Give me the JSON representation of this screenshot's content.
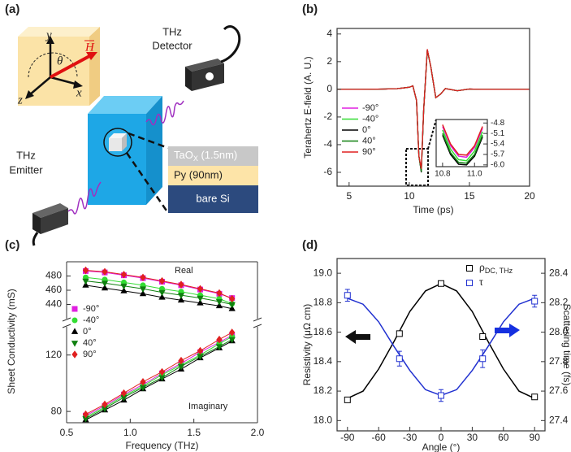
{
  "diagram": {
    "label": "(a)",
    "axes": {
      "y": "y",
      "x": "x",
      "z": "z",
      "angle": "θ",
      "field": "H"
    },
    "detector": [
      "THz",
      "Detector"
    ],
    "emitter": [
      "THz",
      "Emitter"
    ],
    "layers": [
      {
        "label": "TaO",
        "sub": "X",
        "suffix": " (1.5nm)"
      },
      {
        "label": "Py (90nm)"
      },
      {
        "label": "bare Si"
      }
    ]
  },
  "chart_data": [
    {
      "type": "line",
      "label": "(b)",
      "xlabel": "Time (ps)",
      "ylabel": "Terahertz E-field (A. U.)",
      "x": [
        4,
        6,
        8,
        9,
        9.5,
        10,
        10.3,
        10.6,
        10.8,
        11.0,
        11.2,
        11.5,
        11.8,
        12.2,
        12.6,
        13,
        14,
        15,
        16,
        18,
        20
      ],
      "xlim": [
        4,
        20
      ],
      "xticks": [
        5,
        10,
        15,
        20
      ],
      "ylim": [
        -7,
        4.4
      ],
      "yticks": [
        -6,
        -4,
        -2,
        0,
        2,
        4
      ],
      "legend": "left",
      "series": [
        {
          "name": "-90°",
          "color": "#e020e0",
          "values": [
            0,
            0,
            0.02,
            0.05,
            0.1,
            0.15,
            0.25,
            -0.8,
            -4.8,
            -5.8,
            -1.5,
            2.85,
            1.6,
            -0.6,
            -0.35,
            0.05,
            -0.1,
            0.02,
            0,
            0,
            0
          ]
        },
        {
          "name": "-40°",
          "color": "#33dd33",
          "values": [
            0,
            0,
            0.02,
            0.05,
            0.1,
            0.15,
            0.25,
            -0.8,
            -4.8,
            -5.9,
            -1.5,
            2.85,
            1.6,
            -0.6,
            -0.35,
            0.05,
            -0.1,
            0.02,
            0,
            0,
            0
          ]
        },
        {
          "name": "0°",
          "color": "#000000",
          "values": [
            0,
            0,
            0.02,
            0.05,
            0.1,
            0.15,
            0.25,
            -0.8,
            -4.8,
            -6.0,
            -1.5,
            2.85,
            1.6,
            -0.6,
            -0.35,
            0.05,
            -0.1,
            0.02,
            0,
            0,
            0
          ]
        },
        {
          "name": "40°",
          "color": "#108010",
          "values": [
            0,
            0,
            0.02,
            0.05,
            0.1,
            0.15,
            0.25,
            -0.8,
            -4.8,
            -5.95,
            -1.5,
            2.85,
            1.6,
            -0.6,
            -0.35,
            0.05,
            -0.1,
            0.02,
            0,
            0,
            0
          ]
        },
        {
          "name": "90°",
          "color": "#e02020",
          "values": [
            0,
            0,
            0.02,
            0.05,
            0.1,
            0.15,
            0.25,
            -0.8,
            -4.8,
            -5.75,
            -1.5,
            2.9,
            1.6,
            -0.6,
            -0.35,
            0.05,
            -0.1,
            0.02,
            0,
            0,
            0
          ]
        }
      ]
    },
    {
      "type": "line",
      "x": [
        10.8,
        10.85,
        10.9,
        10.95,
        11.0,
        11.05
      ],
      "xlim": [
        10.76,
        11.08
      ],
      "xticks": [
        10.8,
        {
          "value": 11,
          "label": "11.0"
        }
      ],
      "ylim": [
        -6.05,
        -4.7
      ],
      "yticks": [
        -4.8,
        -5.1,
        -5.4,
        -5.7,
        {
          "value": -6,
          "label": "-6.0"
        }
      ],
      "series": [
        {
          "color": "#e020e0",
          "values": [
            -4.9,
            -5.45,
            -5.75,
            -5.78,
            -5.5,
            -4.95
          ]
        },
        {
          "color": "#33dd33",
          "values": [
            -5.0,
            -5.55,
            -5.85,
            -5.88,
            -5.6,
            -5.05
          ]
        },
        {
          "color": "#000000",
          "values": [
            -5.15,
            -5.7,
            -5.98,
            -6.0,
            -5.75,
            -5.2
          ]
        },
        {
          "color": "#108010",
          "values": [
            -5.1,
            -5.65,
            -5.93,
            -5.95,
            -5.7,
            -5.15
          ]
        },
        {
          "color": "#e02020",
          "values": [
            -4.85,
            -5.4,
            -5.7,
            -5.72,
            -5.45,
            -4.9
          ]
        }
      ]
    },
    {
      "type": "scatter",
      "label": "(c)",
      "xlabel": "Frequency (THz)",
      "ylabel": "Sheet Conductivity (mS)",
      "annotations": [
        "Real",
        "Imaginary"
      ],
      "x": [
        0.65,
        0.8,
        0.95,
        1.1,
        1.25,
        1.4,
        1.55,
        1.7,
        1.8
      ],
      "xlim": [
        0.5,
        2
      ],
      "xticks": [
        0.5,
        {
          "value": 1,
          "label": "1.0"
        },
        1.5,
        {
          "value": 2,
          "label": "2.0"
        }
      ],
      "ylim": [
        72,
        140
      ],
      "yticks": [
        80,
        120
      ],
      "ylim_top": [
        420,
        500
      ],
      "yticks_top": [
        440,
        460,
        480
      ],
      "legend": "left",
      "series": [
        {
          "name": "-90°",
          "color": "#e020e0",
          "marker": "square",
          "values": [
            487,
            485,
            481,
            477,
            472,
            467,
            461,
            455,
            449
          ],
          "imaginary": [
            77,
            84,
            92,
            99,
            107,
            114,
            122,
            129,
            134
          ]
        },
        {
          "name": "-40°",
          "color": "#33dd33",
          "marker": "circle",
          "values": [
            478,
            475,
            471,
            467,
            462,
            458,
            453,
            448,
            441
          ],
          "imaginary": [
            76,
            83,
            91,
            98,
            106,
            113,
            120,
            128,
            133
          ]
        },
        {
          "name": "0°",
          "color": "#000000",
          "marker": "triangle",
          "values": [
            467,
            463,
            459,
            455,
            450,
            446,
            442,
            438,
            434
          ],
          "imaginary": [
            74,
            81,
            88,
            96,
            103,
            110,
            118,
            125,
            130
          ]
        },
        {
          "name": "40°",
          "color": "#108010",
          "marker": "triangle-down",
          "values": [
            473,
            470,
            466,
            462,
            457,
            453,
            449,
            444,
            440
          ],
          "imaginary": [
            75,
            82,
            90,
            97,
            104,
            112,
            119,
            126,
            131
          ]
        },
        {
          "name": "90°",
          "color": "#e02020",
          "marker": "diamond",
          "values": [
            488,
            486,
            482,
            478,
            473,
            468,
            462,
            456,
            448
          ],
          "imaginary": [
            78,
            85,
            93,
            101,
            108,
            116,
            123,
            131,
            136
          ]
        }
      ]
    },
    {
      "type": "dual_scatter",
      "label": "(d)",
      "xlabel": "Angle (°)",
      "ylabel": "Resistivity (μΩ cm)",
      "y2label": "Scattering time (fs)",
      "x": [
        -90,
        -40,
        0,
        40,
        90
      ],
      "xlim": [
        -100,
        100
      ],
      "xticks": [
        -90,
        -60,
        -30,
        0,
        30,
        60,
        90
      ],
      "ylim": [
        17.93,
        19.1
      ],
      "yticks": [
        {
          "value": 18,
          "label": "18.0"
        },
        18.2,
        18.4,
        18.6,
        18.8,
        {
          "value": 19,
          "label": "19.0"
        }
      ],
      "y2lim": [
        27.33,
        28.5
      ],
      "y2ticks": [
        27.4,
        27.6,
        27.8,
        {
          "value": 28,
          "label": "28.0"
        },
        28.2,
        28.4
      ],
      "legend": "upper right",
      "fit_x": [
        -90,
        -75,
        -60,
        -45,
        -30,
        -15,
        0,
        15,
        30,
        45,
        60,
        75,
        90
      ],
      "series": [
        {
          "name": "ρ",
          "name_sub": "DC, THz",
          "color": "#000000",
          "values": [
            18.14,
            18.59,
            18.93,
            18.57,
            18.16
          ],
          "errors": [
            0.01,
            0.01,
            0.01,
            0.01,
            0.01
          ],
          "fit": [
            18.15,
            18.2,
            18.35,
            18.54,
            18.74,
            18.88,
            18.93,
            18.88,
            18.74,
            18.54,
            18.35,
            18.2,
            18.15
          ]
        },
        {
          "name": "τ",
          "axis": "y2",
          "color": "#2030d0",
          "values": [
            28.25,
            27.82,
            27.57,
            27.82,
            28.21
          ],
          "errors": [
            0.04,
            0.05,
            0.04,
            0.06,
            0.04
          ],
          "fit": [
            28.23,
            28.19,
            28.07,
            27.9,
            27.74,
            27.61,
            27.57,
            27.61,
            27.74,
            27.9,
            28.07,
            28.19,
            28.23
          ]
        }
      ]
    }
  ]
}
